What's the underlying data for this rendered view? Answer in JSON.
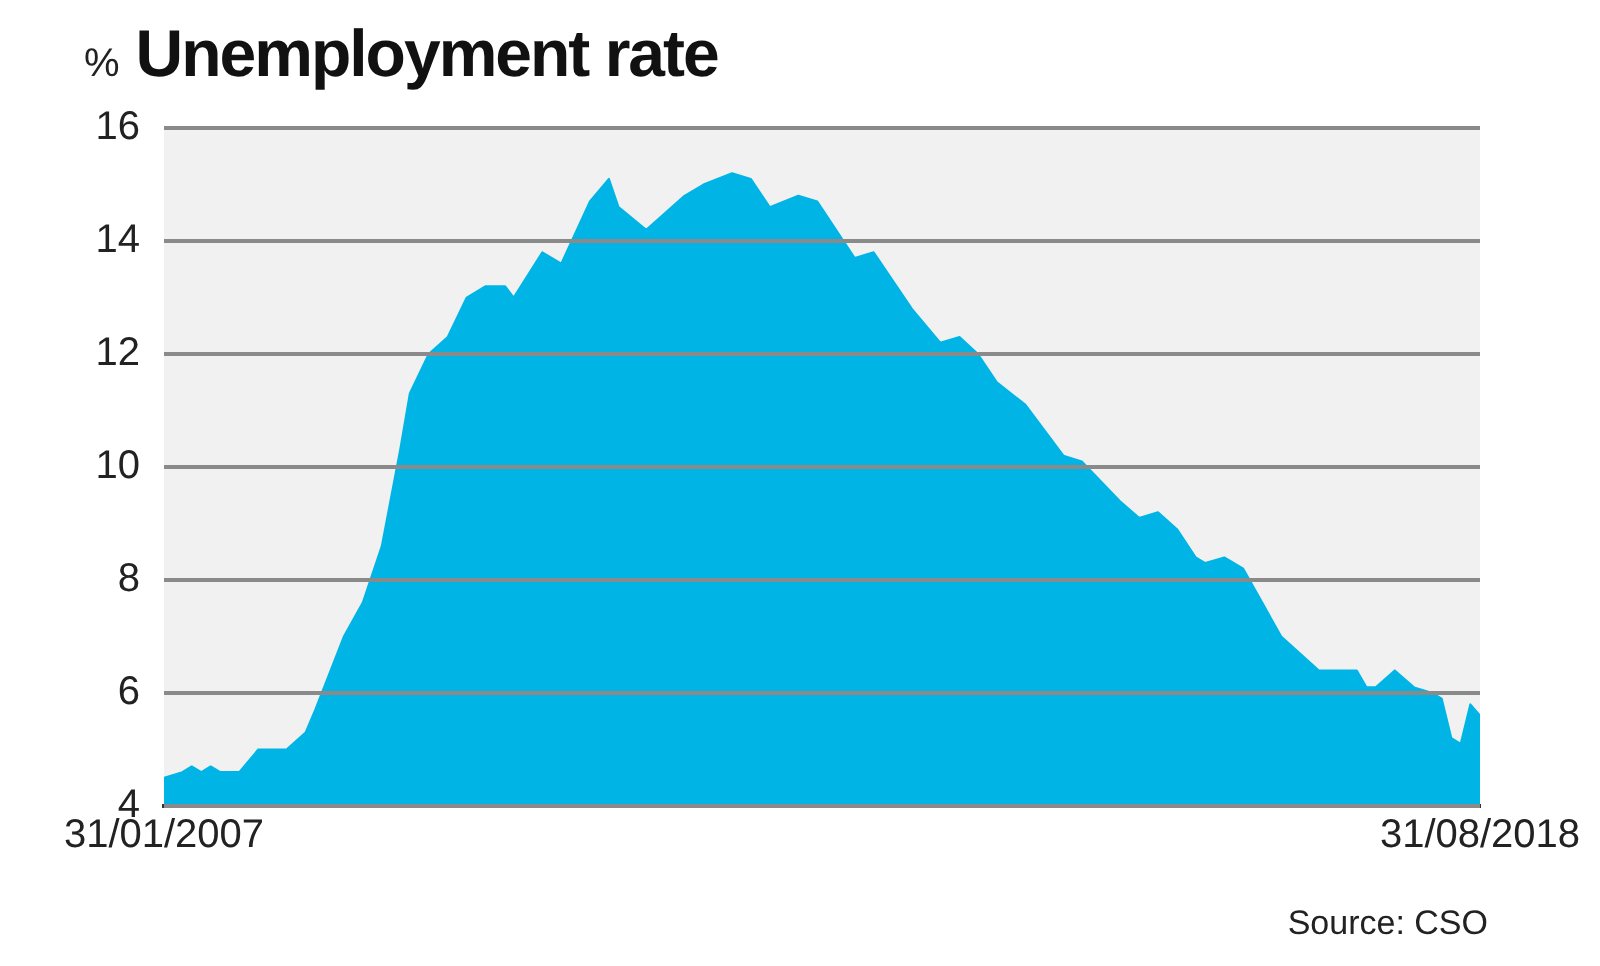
{
  "chart_data": {
    "type": "area",
    "title": "Unemployment rate",
    "ylabel": "%",
    "annotations": [
      "Source: CSO"
    ],
    "color": "#00b4e6",
    "grid": "y",
    "x": [
      "2007-01-31",
      "2007-03-31",
      "2007-04-30",
      "2007-05-31",
      "2007-06-30",
      "2007-07-31",
      "2007-09-30",
      "2007-11-30",
      "2008-02-29",
      "2008-04-30",
      "2008-05-31",
      "2008-08-31",
      "2008-10-31",
      "2008-12-31",
      "2009-02-28",
      "2009-03-31",
      "2009-05-31",
      "2009-07-31",
      "2009-09-30",
      "2009-11-30",
      "2010-01-31",
      "2010-02-28",
      "2010-05-31",
      "2010-07-31",
      "2010-10-31",
      "2010-12-31",
      "2011-01-31",
      "2011-04-30",
      "2011-08-31",
      "2011-10-31",
      "2012-01-31",
      "2012-03-31",
      "2012-05-31",
      "2012-08-31",
      "2012-10-31",
      "2013-02-28",
      "2013-04-30",
      "2013-08-31",
      "2013-11-30",
      "2014-01-31",
      "2014-03-31",
      "2014-05-31",
      "2014-08-31",
      "2014-12-31",
      "2015-02-28",
      "2015-06-30",
      "2015-08-31",
      "2015-10-31",
      "2015-12-31",
      "2016-02-29",
      "2016-03-31",
      "2016-05-31",
      "2016-07-31",
      "2016-09-30",
      "2016-11-30",
      "2017-03-31",
      "2017-05-31",
      "2017-07-31",
      "2017-08-31",
      "2017-09-30",
      "2017-11-30",
      "2018-01-31",
      "2018-03-31",
      "2018-04-30",
      "2018-05-31",
      "2018-06-30",
      "2018-07-31",
      "2018-08-31"
    ],
    "values": [
      4.5,
      4.6,
      4.7,
      4.6,
      4.7,
      4.6,
      4.6,
      5.0,
      5.0,
      5.3,
      5.7,
      7.0,
      7.6,
      8.6,
      10.3,
      11.3,
      12.0,
      12.3,
      13.0,
      13.2,
      13.2,
      13.0,
      13.8,
      13.6,
      14.7,
      15.1,
      14.6,
      14.2,
      14.8,
      15.0,
      15.2,
      15.1,
      14.6,
      14.8,
      14.7,
      13.7,
      13.8,
      12.8,
      12.2,
      12.3,
      12.0,
      11.5,
      11.1,
      10.2,
      10.1,
      9.4,
      9.1,
      9.2,
      8.9,
      8.4,
      8.3,
      8.4,
      8.2,
      7.6,
      7.0,
      6.4,
      6.4,
      6.4,
      6.1,
      6.1,
      6.4,
      6.1,
      6.0,
      5.9,
      5.2,
      5.1,
      5.8,
      5.6
    ],
    "xlim": [
      "2007-01-31",
      "2018-08-31"
    ],
    "xticks": [
      {
        "value": "2007-01-31",
        "label": "31/01/2007"
      },
      {
        "value": "2018-08-31",
        "label": "31/08/2018"
      }
    ],
    "ylim": [
      4,
      16
    ],
    "yticks": [
      4,
      6,
      8,
      10,
      12,
      14,
      16
    ]
  }
}
